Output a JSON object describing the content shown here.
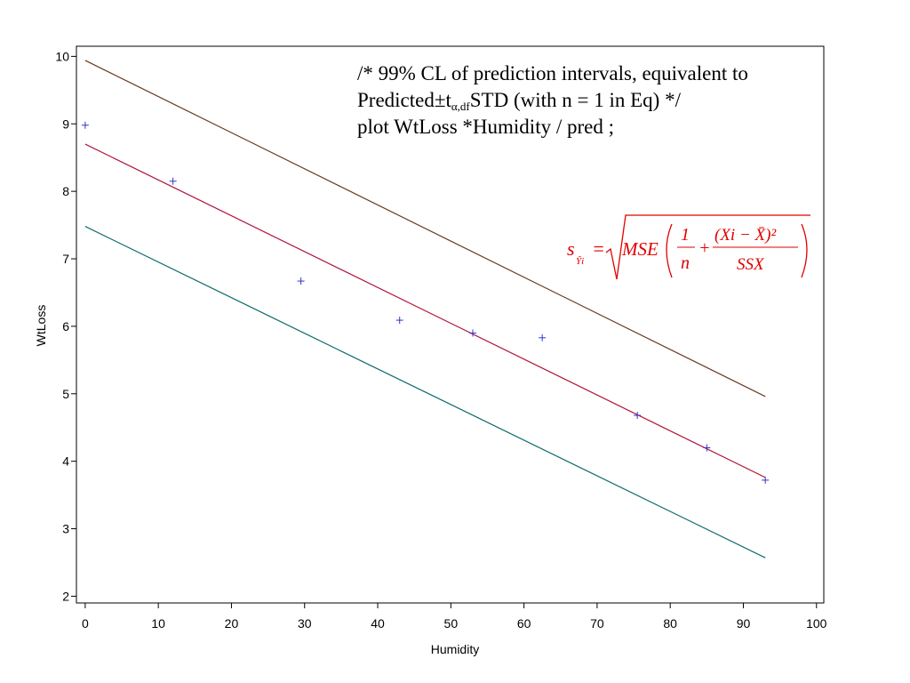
{
  "annotation": {
    "line1": "/* 99% CL of prediction intervals, equivalent to",
    "line2_prefix": "Predicted±t",
    "line2_sub": "α,df",
    "line2_suffix": "STD (with n = 1 in Eq) */",
    "line3": "plot WtLoss *Humidity / pred ;"
  },
  "formula": {
    "lhs": "s",
    "lhs_sub": "Ŷi",
    "eq": "=",
    "mse": "MSE",
    "one": "1",
    "n": "n",
    "plus": "+",
    "numerator": "(Xi − X̄)²",
    "denominator": "SSX"
  },
  "colors": {
    "upper": "#6b3a1f",
    "predicted": "#b0153a",
    "lower": "#0e6b6b",
    "points": "#3333cc",
    "formula": "#e00000"
  },
  "chart_data": {
    "type": "scatter",
    "xlabel": "Humidity",
    "ylabel": "WtLoss",
    "xlim": [
      -1.2,
      101
    ],
    "ylim": [
      1.9,
      10.15
    ],
    "xticks": [
      0,
      10,
      20,
      30,
      40,
      50,
      60,
      70,
      80,
      90,
      100
    ],
    "yticks": [
      2,
      3,
      4,
      5,
      6,
      7,
      8,
      9,
      10
    ],
    "grid": false,
    "points": [
      {
        "x": 0,
        "y": 8.98
      },
      {
        "x": 12,
        "y": 8.15
      },
      {
        "x": 29.5,
        "y": 6.67
      },
      {
        "x": 43,
        "y": 6.09
      },
      {
        "x": 53,
        "y": 5.9
      },
      {
        "x": 62.5,
        "y": 5.83
      },
      {
        "x": 75.5,
        "y": 4.68
      },
      {
        "x": 85,
        "y": 4.2
      },
      {
        "x": 93,
        "y": 3.72
      }
    ],
    "lines": [
      {
        "role": "upper",
        "x": [
          0,
          93
        ],
        "y": [
          9.94,
          4.96
        ]
      },
      {
        "role": "predicted",
        "x": [
          0,
          93
        ],
        "y": [
          8.7,
          3.76
        ]
      },
      {
        "role": "lower",
        "x": [
          0,
          93
        ],
        "y": [
          7.48,
          2.57
        ]
      }
    ]
  }
}
